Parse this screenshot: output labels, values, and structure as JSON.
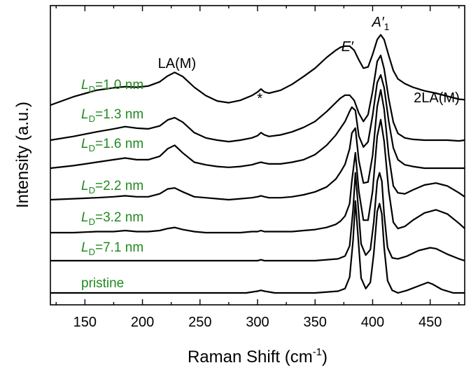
{
  "chart_data": {
    "type": "line",
    "xlabel": "Raman Shift (cm",
    "xlabel_sup": "-1",
    "xlabel_close": ")",
    "ylabel": "Intensity (a.u.)",
    "xlim": [
      120,
      480
    ],
    "x_ticks": [
      150,
      200,
      250,
      300,
      350,
      400,
      450
    ],
    "y_ticks_labeled": false,
    "grid": false,
    "label_color": "#1f8a1f",
    "line_color": "#000000",
    "annotations": [
      {
        "text": "LA(M)",
        "x": 230
      },
      {
        "text": "*",
        "x": 302
      },
      {
        "text": "E′",
        "x": 378
      },
      {
        "text": "A′",
        "sub": "1",
        "x": 407
      },
      {
        "text": "2LA(M)",
        "x": 457
      }
    ],
    "series": [
      {
        "label_main": "L",
        "label_sub": "D",
        "label_rest": "=1.0 nm",
        "x": [
          120,
          140,
          160,
          175,
          185,
          195,
          205,
          215,
          222,
          228,
          235,
          245,
          255,
          265,
          275,
          285,
          295,
          300,
          303,
          306,
          310,
          320,
          330,
          340,
          350,
          360,
          368,
          372,
          376,
          380,
          384,
          388,
          392,
          396,
          400,
          404,
          407,
          410,
          414,
          418,
          422,
          428,
          435,
          445,
          455,
          465,
          475,
          480
        ],
        "y": [
          0.0,
          0.14,
          0.25,
          0.29,
          0.31,
          0.3,
          0.32,
          0.39,
          0.49,
          0.55,
          0.48,
          0.3,
          0.16,
          0.07,
          0.04,
          0.08,
          0.16,
          0.22,
          0.27,
          0.22,
          0.2,
          0.25,
          0.35,
          0.48,
          0.62,
          0.8,
          0.92,
          0.97,
          0.99,
          0.99,
          0.92,
          0.76,
          0.62,
          0.64,
          0.85,
          1.1,
          1.18,
          1.1,
          0.83,
          0.58,
          0.44,
          0.36,
          0.3,
          0.24,
          0.2,
          0.15,
          0.1,
          0.09
        ]
      },
      {
        "label_main": "L",
        "label_sub": "D",
        "label_rest": "=1.3 nm",
        "x": [
          120,
          140,
          160,
          175,
          185,
          195,
          205,
          215,
          222,
          228,
          235,
          245,
          255,
          265,
          275,
          285,
          295,
          300,
          303,
          306,
          310,
          320,
          330,
          340,
          350,
          360,
          368,
          372,
          376,
          380,
          384,
          388,
          392,
          396,
          400,
          404,
          407,
          410,
          414,
          418,
          422,
          428,
          435,
          445,
          455,
          465,
          475,
          480
        ],
        "y": [
          0.0,
          0.05,
          0.11,
          0.15,
          0.18,
          0.16,
          0.15,
          0.19,
          0.27,
          0.3,
          0.24,
          0.1,
          0.03,
          0.0,
          -0.02,
          0.0,
          0.03,
          0.06,
          0.1,
          0.07,
          0.05,
          0.07,
          0.11,
          0.17,
          0.25,
          0.38,
          0.5,
          0.56,
          0.6,
          0.6,
          0.53,
          0.36,
          0.25,
          0.34,
          0.65,
          1.05,
          1.13,
          0.95,
          0.55,
          0.24,
          0.09,
          0.03,
          0.01,
          0.0,
          0.0,
          0.0,
          -0.01,
          0.0
        ]
      },
      {
        "label_main": "L",
        "label_sub": "D",
        "label_rest": "=1.6 nm",
        "x": [
          120,
          140,
          160,
          175,
          185,
          195,
          205,
          215,
          222,
          228,
          235,
          245,
          255,
          265,
          275,
          285,
          295,
          300,
          303,
          306,
          310,
          320,
          330,
          340,
          350,
          360,
          368,
          372,
          376,
          380,
          382,
          385,
          388,
          392,
          396,
          400,
          404,
          407,
          410,
          414,
          418,
          422,
          428,
          435,
          445,
          455,
          465,
          475,
          480
        ],
        "y": [
          0.0,
          0.03,
          0.07,
          0.1,
          0.12,
          0.1,
          0.1,
          0.14,
          0.23,
          0.27,
          0.18,
          0.07,
          0.04,
          0.02,
          0.01,
          0.02,
          0.04,
          0.06,
          0.07,
          0.06,
          0.05,
          0.05,
          0.07,
          0.1,
          0.16,
          0.27,
          0.39,
          0.47,
          0.55,
          0.67,
          0.72,
          0.68,
          0.38,
          0.25,
          0.31,
          0.62,
          1.01,
          1.1,
          0.95,
          0.55,
          0.24,
          0.1,
          0.04,
          0.02,
          0.0,
          0.0,
          0.0,
          0.0,
          0.0
        ]
      },
      {
        "label_main": "L",
        "label_sub": "D",
        "label_rest": "=2.2 nm",
        "x": [
          120,
          140,
          160,
          175,
          185,
          195,
          205,
          215,
          222,
          228,
          235,
          245,
          255,
          265,
          275,
          285,
          295,
          300,
          303,
          306,
          310,
          320,
          330,
          340,
          350,
          360,
          368,
          372,
          376,
          380,
          382,
          385,
          388,
          392,
          396,
          400,
          404,
          407,
          410,
          414,
          418,
          422,
          428,
          435,
          445,
          455,
          465,
          475,
          480
        ],
        "y": [
          0.0,
          0.01,
          0.02,
          0.03,
          0.04,
          0.03,
          0.03,
          0.06,
          0.11,
          0.12,
          0.08,
          0.03,
          0.02,
          0.01,
          0.0,
          0.01,
          0.02,
          0.03,
          0.04,
          0.03,
          0.02,
          0.02,
          0.03,
          0.05,
          0.08,
          0.13,
          0.21,
          0.28,
          0.36,
          0.52,
          0.68,
          0.73,
          0.4,
          0.17,
          0.18,
          0.45,
          0.95,
          1.12,
          0.92,
          0.45,
          0.14,
          0.07,
          0.06,
          0.1,
          0.15,
          0.17,
          0.14,
          0.07,
          0.03
        ]
      },
      {
        "label_main": "L",
        "label_sub": "D",
        "label_rest": "=3.2 nm",
        "x": [
          120,
          140,
          160,
          175,
          185,
          195,
          205,
          215,
          222,
          228,
          235,
          245,
          255,
          265,
          275,
          285,
          295,
          300,
          303,
          306,
          310,
          320,
          330,
          340,
          350,
          360,
          368,
          372,
          376,
          380,
          382,
          385,
          388,
          392,
          396,
          400,
          404,
          407,
          410,
          414,
          418,
          422,
          428,
          435,
          445,
          455,
          465,
          475,
          480
        ],
        "y": [
          0.0,
          0.0,
          0.01,
          0.01,
          0.02,
          0.01,
          0.01,
          0.02,
          0.04,
          0.05,
          0.03,
          0.01,
          0.0,
          0.0,
          0.0,
          0.0,
          0.01,
          0.01,
          0.02,
          0.01,
          0.01,
          0.01,
          0.01,
          0.02,
          0.03,
          0.05,
          0.08,
          0.11,
          0.16,
          0.28,
          0.5,
          0.77,
          0.4,
          0.12,
          0.12,
          0.4,
          0.93,
          1.09,
          0.88,
          0.4,
          0.1,
          0.04,
          0.06,
          0.12,
          0.19,
          0.22,
          0.18,
          0.09,
          0.04
        ]
      },
      {
        "label_main": "L",
        "label_sub": "D",
        "label_rest": "=7.1 nm",
        "x": [
          120,
          160,
          200,
          250,
          300,
          303,
          306,
          350,
          370,
          376,
          380,
          383,
          385,
          387,
          390,
          394,
          398,
          401,
          404,
          406,
          408,
          410,
          413,
          417,
          422,
          430,
          440,
          450,
          455,
          465,
          475,
          480
        ],
        "y": [
          0.0,
          0.0,
          0.0,
          0.0,
          0.0,
          0.01,
          0.0,
          0.0,
          0.02,
          0.05,
          0.16,
          0.55,
          0.95,
          0.65,
          0.18,
          0.06,
          0.12,
          0.42,
          0.86,
          0.95,
          0.86,
          0.5,
          0.14,
          0.03,
          0.02,
          0.05,
          0.11,
          0.14,
          0.13,
          0.07,
          0.02,
          0.0
        ]
      },
      {
        "label_main": "pristine",
        "label_sub": "",
        "label_rest": "",
        "x": [
          120,
          160,
          200,
          250,
          290,
          300,
          303,
          306,
          315,
          350,
          370,
          376,
          380,
          383,
          385,
          387,
          390,
          394,
          398,
          401,
          404,
          406,
          408,
          410,
          413,
          417,
          422,
          430,
          440,
          448,
          452,
          460,
          470,
          480
        ],
        "y": [
          0.0,
          0.0,
          0.0,
          0.0,
          0.0,
          0.02,
          0.03,
          0.02,
          0.0,
          0.0,
          0.02,
          0.05,
          0.18,
          0.6,
          1.05,
          0.7,
          0.17,
          0.05,
          0.12,
          0.45,
          0.93,
          1.02,
          0.9,
          0.52,
          0.14,
          0.03,
          0.0,
          0.03,
          0.08,
          0.12,
          0.1,
          0.04,
          0.0,
          0.0
        ]
      }
    ]
  }
}
